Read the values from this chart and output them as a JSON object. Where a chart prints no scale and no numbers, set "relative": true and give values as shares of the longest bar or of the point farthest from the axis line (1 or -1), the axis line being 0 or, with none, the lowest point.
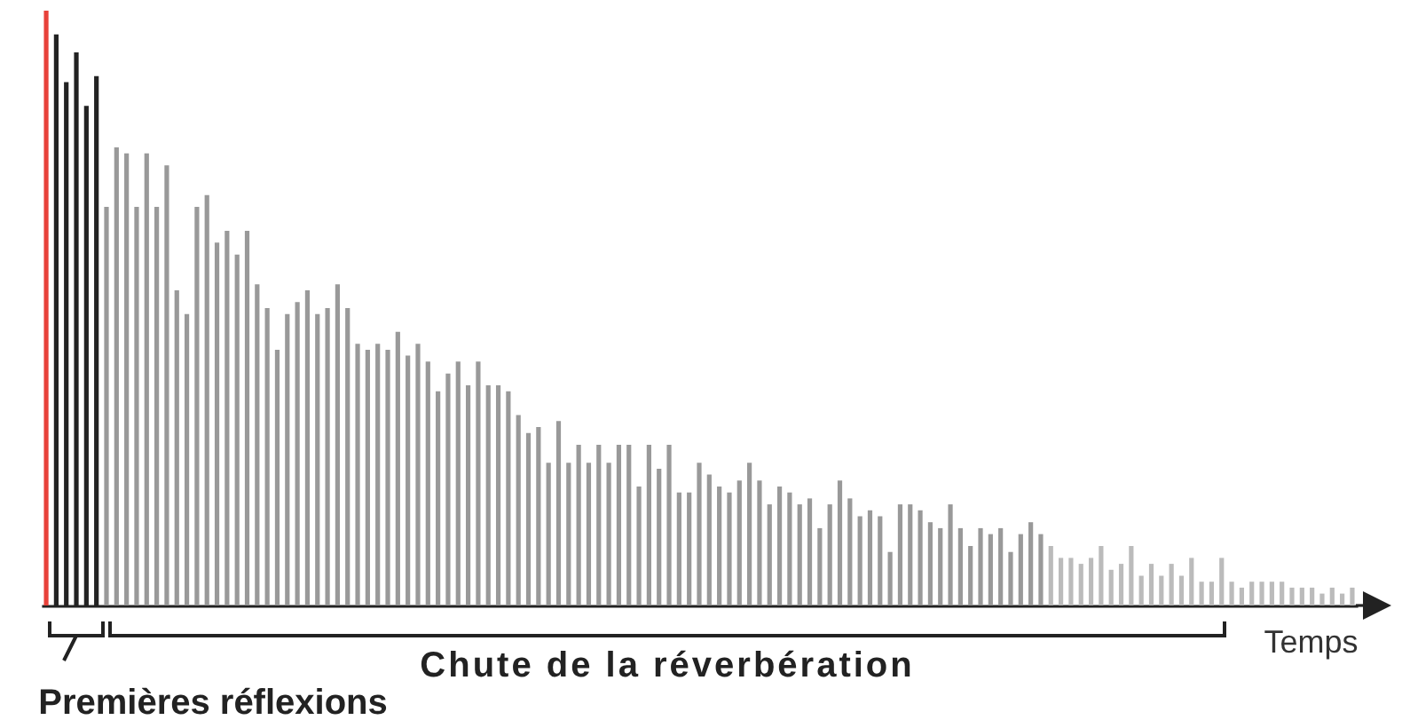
{
  "chart_data": {
    "type": "bar",
    "relative": true,
    "xlabel": "Temps",
    "annotations": [
      "Premières réflexions",
      "Chute de la réverbération"
    ],
    "categories": [
      null,
      null,
      null,
      null,
      null,
      null,
      null,
      null,
      null,
      null,
      null,
      null,
      null,
      null,
      null,
      null,
      null,
      null,
      null,
      null,
      null,
      null,
      null,
      null,
      null,
      null,
      null,
      null,
      null,
      null,
      null,
      null,
      null,
      null,
      null,
      null,
      null,
      null,
      null,
      null,
      null,
      null,
      null,
      null,
      null,
      null,
      null,
      null,
      null,
      null,
      null,
      null,
      null,
      null,
      null,
      null,
      null,
      null,
      null,
      null,
      null,
      null,
      null,
      null,
      null,
      null,
      null,
      null,
      null,
      null,
      null,
      null,
      null,
      null,
      null,
      null,
      null,
      null,
      null,
      null,
      null,
      null,
      null,
      null,
      null,
      null,
      null,
      null,
      null,
      null,
      null,
      null,
      null,
      null,
      null,
      null,
      null,
      null,
      null,
      null,
      null,
      null,
      null,
      null,
      null,
      null,
      null,
      null,
      null,
      null,
      null,
      null,
      null,
      null,
      null,
      null,
      null,
      null,
      null,
      null,
      null,
      null,
      null,
      null,
      null,
      null,
      null,
      null,
      null,
      null,
      null
    ],
    "values": [
      1.0,
      0.96,
      0.88,
      0.93,
      0.84,
      0.89,
      0.67,
      0.77,
      0.76,
      0.67,
      0.76,
      0.67,
      0.74,
      0.53,
      0.49,
      0.67,
      0.69,
      0.61,
      0.63,
      0.59,
      0.63,
      0.54,
      0.5,
      0.43,
      0.49,
      0.51,
      0.53,
      0.49,
      0.5,
      0.54,
      0.5,
      0.44,
      0.43,
      0.44,
      0.43,
      0.46,
      0.42,
      0.44,
      0.41,
      0.36,
      0.39,
      0.41,
      0.37,
      0.41,
      0.37,
      0.37,
      0.36,
      0.32,
      0.29,
      0.3,
      0.24,
      0.31,
      0.24,
      0.27,
      0.24,
      0.27,
      0.24,
      0.27,
      0.27,
      0.2,
      0.27,
      0.23,
      0.27,
      0.19,
      0.19,
      0.24,
      0.22,
      0.2,
      0.19,
      0.21,
      0.24,
      0.21,
      0.17,
      0.2,
      0.19,
      0.17,
      0.18,
      0.13,
      0.17,
      0.21,
      0.18,
      0.15,
      0.16,
      0.15,
      0.09,
      0.17,
      0.17,
      0.16,
      0.14,
      0.13,
      0.17,
      0.13,
      0.1,
      0.13,
      0.12,
      0.13,
      0.09,
      0.12,
      0.14,
      0.12,
      0.1,
      0.08,
      0.08,
      0.07,
      0.08,
      0.1,
      0.06,
      0.07,
      0.1,
      0.05,
      0.07,
      0.05,
      0.07,
      0.05,
      0.08,
      0.04,
      0.04,
      0.08,
      0.04,
      0.03,
      0.04,
      0.04,
      0.04,
      0.04,
      0.03,
      0.03,
      0.03,
      0.02,
      0.03,
      0.02,
      0.03
    ],
    "colors": [
      "#e8413a",
      "#222222",
      "#222222",
      "#222222",
      "#222222",
      "#222222",
      "#999999",
      "#999999",
      "#999999",
      "#999999",
      "#999999",
      "#999999",
      "#999999",
      "#999999",
      "#999999",
      "#999999",
      "#999999",
      "#999999",
      "#999999",
      "#999999",
      "#999999",
      "#999999",
      "#999999",
      "#999999",
      "#999999",
      "#999999",
      "#999999",
      "#999999",
      "#999999",
      "#999999",
      "#999999",
      "#999999",
      "#999999",
      "#999999",
      "#999999",
      "#999999",
      "#999999",
      "#999999",
      "#999999",
      "#999999",
      "#999999",
      "#999999",
      "#999999",
      "#999999",
      "#999999",
      "#999999",
      "#999999",
      "#999999",
      "#999999",
      "#999999",
      "#999999",
      "#999999",
      "#999999",
      "#999999",
      "#999999",
      "#999999",
      "#999999",
      "#999999",
      "#999999",
      "#999999",
      "#999999",
      "#999999",
      "#999999",
      "#999999",
      "#999999",
      "#999999",
      "#999999",
      "#999999",
      "#999999",
      "#999999",
      "#999999",
      "#999999",
      "#999999",
      "#999999",
      "#999999",
      "#999999",
      "#999999",
      "#999999",
      "#999999",
      "#999999",
      "#999999",
      "#999999",
      "#999999",
      "#999999",
      "#999999",
      "#999999",
      "#999999",
      "#999999",
      "#999999",
      "#999999",
      "#999999",
      "#999999",
      "#999999",
      "#999999",
      "#999999",
      "#999999",
      "#999999",
      "#999999",
      "#999999",
      "#999999",
      "#bbbbbb",
      "#bbbbbb",
      "#bbbbbb",
      "#bbbbbb",
      "#bbbbbb",
      "#bbbbbb",
      "#bbbbbb",
      "#bbbbbb",
      "#bbbbbb",
      "#bbbbbb",
      "#bbbbbb",
      "#bbbbbb",
      "#bbbbbb",
      "#bbbbbb",
      "#bbbbbb",
      "#bbbbbb",
      "#bbbbbb",
      "#bbbbbb",
      "#bbbbbb",
      "#bbbbbb",
      "#bbbbbb",
      "#bbbbbb",
      "#bbbbbb",
      "#bbbbbb",
      "#bbbbbb",
      "#bbbbbb",
      "#bbbbbb",
      "#bbbbbb",
      "#bbbbbb",
      "#bbbbbb",
      "#bbbbbb"
    ]
  }
}
